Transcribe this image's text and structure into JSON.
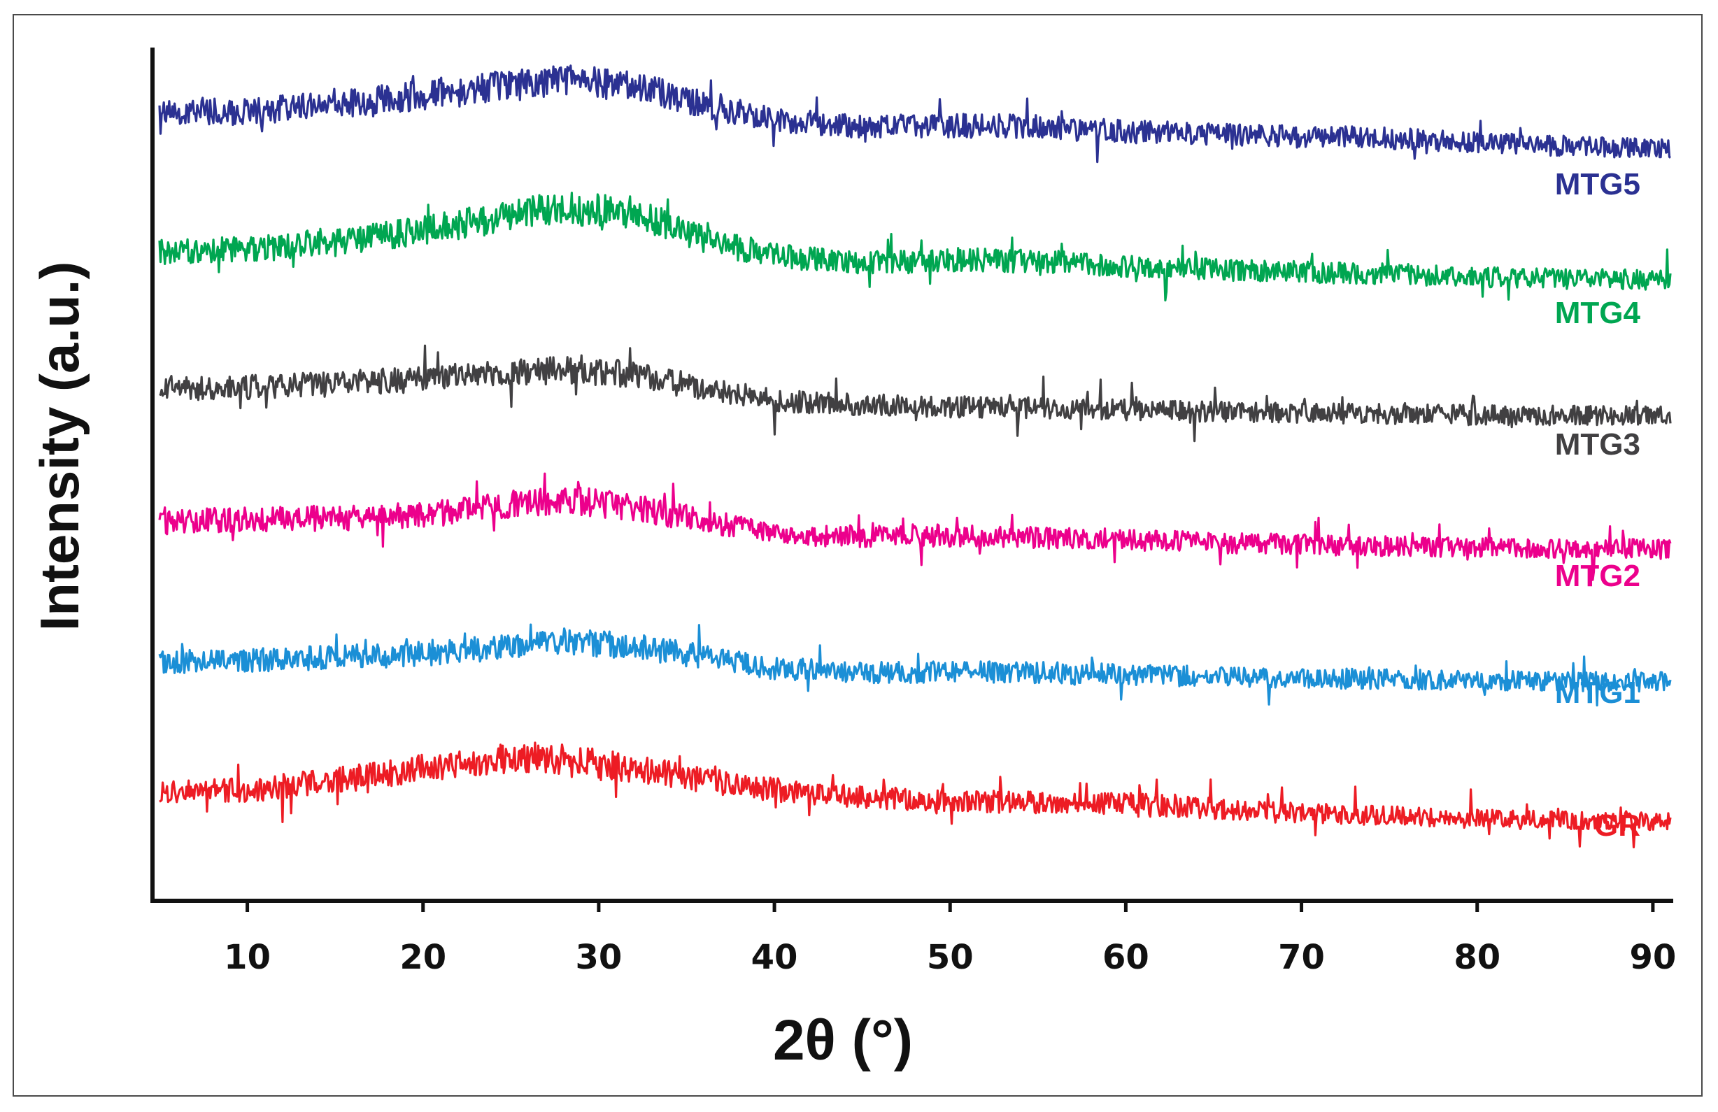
{
  "chart_data": {
    "type": "line",
    "title": "",
    "xlabel": "2θ (°)",
    "ylabel": "Intensity (a.u.)",
    "xlim": [
      5,
      91
    ],
    "x_ticks": [
      "10",
      "20",
      "30",
      "40",
      "50",
      "60",
      "70",
      "80",
      "90"
    ],
    "y_ticks_shown": false,
    "grid": false,
    "legend": "labels at right end of each curve",
    "series": [
      {
        "name": "MTG5",
        "color": "#2b3192",
        "offset": 5,
        "x": [
          5,
          10,
          15,
          20,
          25,
          28,
          32,
          36,
          40,
          45,
          50,
          55,
          60,
          65,
          70,
          75,
          80,
          85,
          91
        ],
        "y": [
          1.05,
          1.02,
          1.15,
          1.3,
          1.45,
          1.55,
          1.45,
          1.15,
          0.9,
          0.78,
          0.8,
          0.78,
          0.7,
          0.66,
          0.62,
          0.6,
          0.52,
          0.47,
          0.42
        ]
      },
      {
        "name": "MTG4",
        "color": "#00a651",
        "offset": 4,
        "x": [
          5,
          10,
          15,
          20,
          25,
          28,
          32,
          36,
          40,
          45,
          50,
          55,
          60,
          65,
          70,
          75,
          80,
          85,
          91
        ],
        "y": [
          0.9,
          0.95,
          1.05,
          1.25,
          1.5,
          1.62,
          1.55,
          1.1,
          0.85,
          0.72,
          0.78,
          0.75,
          0.68,
          0.62,
          0.58,
          0.55,
          0.5,
          0.47,
          0.45
        ]
      },
      {
        "name": "MTG3",
        "color": "#414042",
        "offset": 3,
        "x": [
          5,
          10,
          15,
          20,
          25,
          28,
          32,
          36,
          40,
          45,
          50,
          55,
          60,
          65,
          70,
          75,
          80,
          85,
          91
        ],
        "y": [
          0.85,
          0.87,
          0.92,
          1.0,
          1.1,
          1.15,
          1.08,
          0.85,
          0.65,
          0.58,
          0.55,
          0.53,
          0.5,
          0.47,
          0.45,
          0.43,
          0.42,
          0.41,
          0.4
        ]
      },
      {
        "name": "MTG2",
        "color": "#ec008c",
        "offset": 2,
        "x": [
          5,
          10,
          15,
          20,
          25,
          28,
          32,
          36,
          40,
          45,
          50,
          55,
          60,
          65,
          70,
          75,
          80,
          85,
          91
        ],
        "y": [
          0.85,
          0.88,
          0.9,
          0.95,
          1.12,
          1.2,
          1.08,
          0.85,
          0.65,
          0.6,
          0.62,
          0.58,
          0.55,
          0.5,
          0.47,
          0.44,
          0.42,
          0.41,
          0.4
        ]
      },
      {
        "name": "MTG1",
        "color": "#1b8fd6",
        "offset": 1,
        "x": [
          5,
          10,
          15,
          20,
          25,
          28,
          32,
          36,
          40,
          45,
          50,
          55,
          60,
          65,
          70,
          75,
          80,
          85,
          91
        ],
        "y": [
          0.72,
          0.75,
          0.8,
          0.85,
          0.98,
          1.05,
          0.98,
          0.8,
          0.62,
          0.55,
          0.56,
          0.55,
          0.52,
          0.48,
          0.46,
          0.44,
          0.42,
          0.4,
          0.4
        ]
      },
      {
        "name": "GR",
        "color": "#ed1c24",
        "offset": 0,
        "x": [
          5,
          10,
          15,
          20,
          25,
          28,
          32,
          36,
          40,
          45,
          50,
          55,
          60,
          65,
          70,
          75,
          80,
          85,
          91
        ],
        "y": [
          0.75,
          0.8,
          0.95,
          1.15,
          1.3,
          1.3,
          1.15,
          0.95,
          0.8,
          0.68,
          0.62,
          0.6,
          0.58,
          0.5,
          0.43,
          0.38,
          0.33,
          0.3,
          0.28
        ]
      }
    ]
  }
}
